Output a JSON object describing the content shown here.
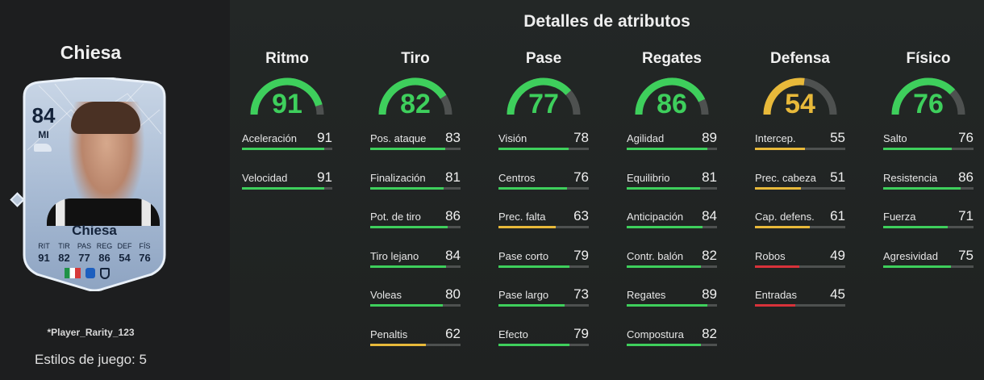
{
  "player": {
    "name": "Chiesa",
    "card": {
      "rating": "84",
      "position": "MI",
      "name": "Chiesa",
      "stat_labels": [
        "RIT",
        "TIR",
        "PAS",
        "REG",
        "DEF",
        "FÍS"
      ],
      "stat_values": [
        "91",
        "82",
        "77",
        "86",
        "54",
        "76"
      ]
    },
    "rarity": "*Player_Rarity_123",
    "playstyles": "Estilos de juego: 5"
  },
  "details_title": "Detalles de atributos",
  "colors": {
    "green": "#3ecf5c",
    "yellow": "#e8b93a",
    "red": "#d8323a",
    "track": "#4e5150"
  },
  "categories": [
    {
      "name": "Ritmo",
      "value": 91,
      "stats": [
        {
          "name": "Aceleración",
          "value": 91
        },
        {
          "name": "Velocidad",
          "value": 91
        }
      ]
    },
    {
      "name": "Tiro",
      "value": 82,
      "stats": [
        {
          "name": "Pos. ataque",
          "value": 83
        },
        {
          "name": "Finalización",
          "value": 81
        },
        {
          "name": "Pot. de tiro",
          "value": 86
        },
        {
          "name": "Tiro lejano",
          "value": 84
        },
        {
          "name": "Voleas",
          "value": 80
        },
        {
          "name": "Penaltis",
          "value": 62
        }
      ]
    },
    {
      "name": "Pase",
      "value": 77,
      "stats": [
        {
          "name": "Visión",
          "value": 78
        },
        {
          "name": "Centros",
          "value": 76
        },
        {
          "name": "Prec. falta",
          "value": 63
        },
        {
          "name": "Pase corto",
          "value": 79
        },
        {
          "name": "Pase largo",
          "value": 73
        },
        {
          "name": "Efecto",
          "value": 79
        }
      ]
    },
    {
      "name": "Regates",
      "value": 86,
      "stats": [
        {
          "name": "Agilidad",
          "value": 89
        },
        {
          "name": "Equilibrio",
          "value": 81
        },
        {
          "name": "Anticipación",
          "value": 84
        },
        {
          "name": "Contr. balón",
          "value": 82
        },
        {
          "name": "Regates",
          "value": 89
        },
        {
          "name": "Compostura",
          "value": 82
        }
      ]
    },
    {
      "name": "Defensa",
      "value": 54,
      "stats": [
        {
          "name": "Intercep.",
          "value": 55
        },
        {
          "name": "Prec. cabeza",
          "value": 51
        },
        {
          "name": "Cap. defens.",
          "value": 61
        },
        {
          "name": "Robos",
          "value": 49
        },
        {
          "name": "Entradas",
          "value": 45
        }
      ]
    },
    {
      "name": "Físico",
      "value": 76,
      "stats": [
        {
          "name": "Salto",
          "value": 76
        },
        {
          "name": "Resistencia",
          "value": 86
        },
        {
          "name": "Fuerza",
          "value": 71
        },
        {
          "name": "Agresividad",
          "value": 75
        }
      ]
    }
  ]
}
